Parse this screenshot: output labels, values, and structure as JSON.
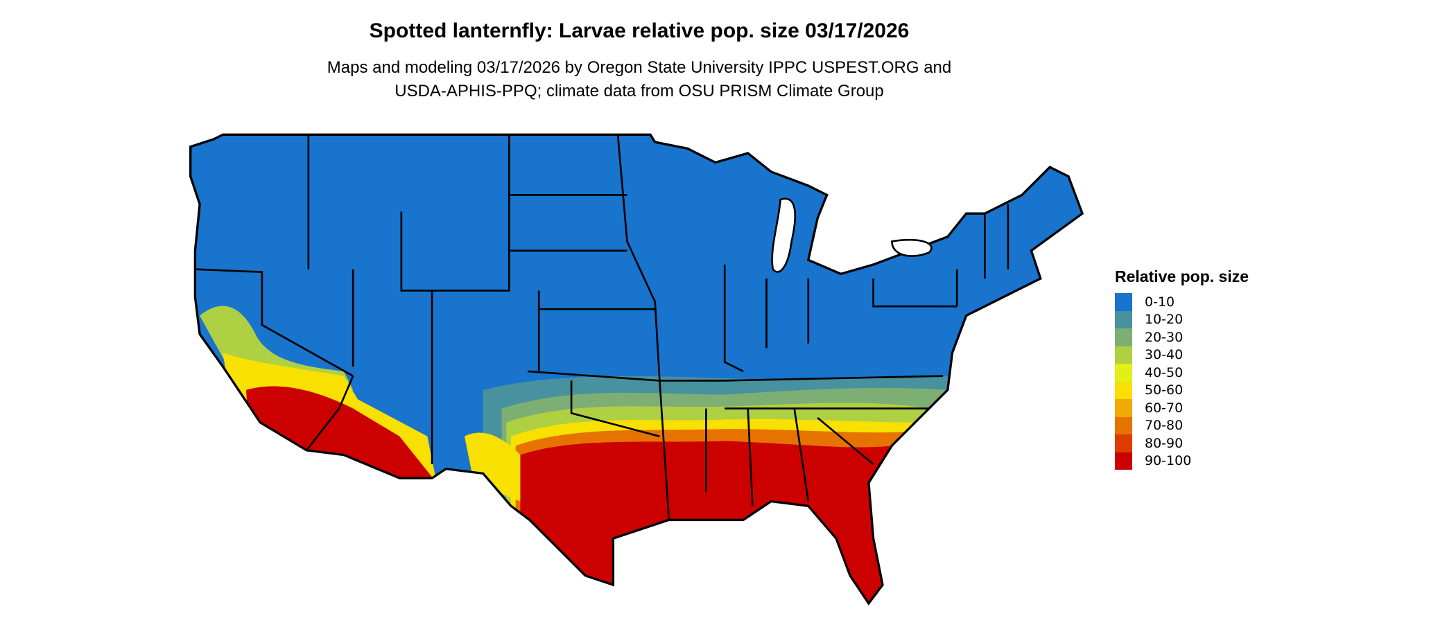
{
  "title": "Spotted lanternfly: Larvae relative pop. size 03/17/2026",
  "subtitle_line1": "Maps and modeling 03/17/2026 by Oregon State University IPPC USPEST.ORG and",
  "subtitle_line2": "USDA-APHIS-PPQ; climate data from OSU PRISM Climate Group",
  "legend": {
    "title": "Relative pop. size",
    "items": [
      {
        "label": "0-10",
        "color": "#1874CD"
      },
      {
        "label": "10-20",
        "color": "#48919E"
      },
      {
        "label": "20-30",
        "color": "#7DAF74"
      },
      {
        "label": "30-40",
        "color": "#B0D044"
      },
      {
        "label": "40-50",
        "color": "#E3F015"
      },
      {
        "label": "50-60",
        "color": "#F8E000"
      },
      {
        "label": "60-70",
        "color": "#F0AA00"
      },
      {
        "label": "70-80",
        "color": "#E67300"
      },
      {
        "label": "80-90",
        "color": "#DC3C00"
      },
      {
        "label": "90-100",
        "color": "#CD0000"
      }
    ]
  }
}
